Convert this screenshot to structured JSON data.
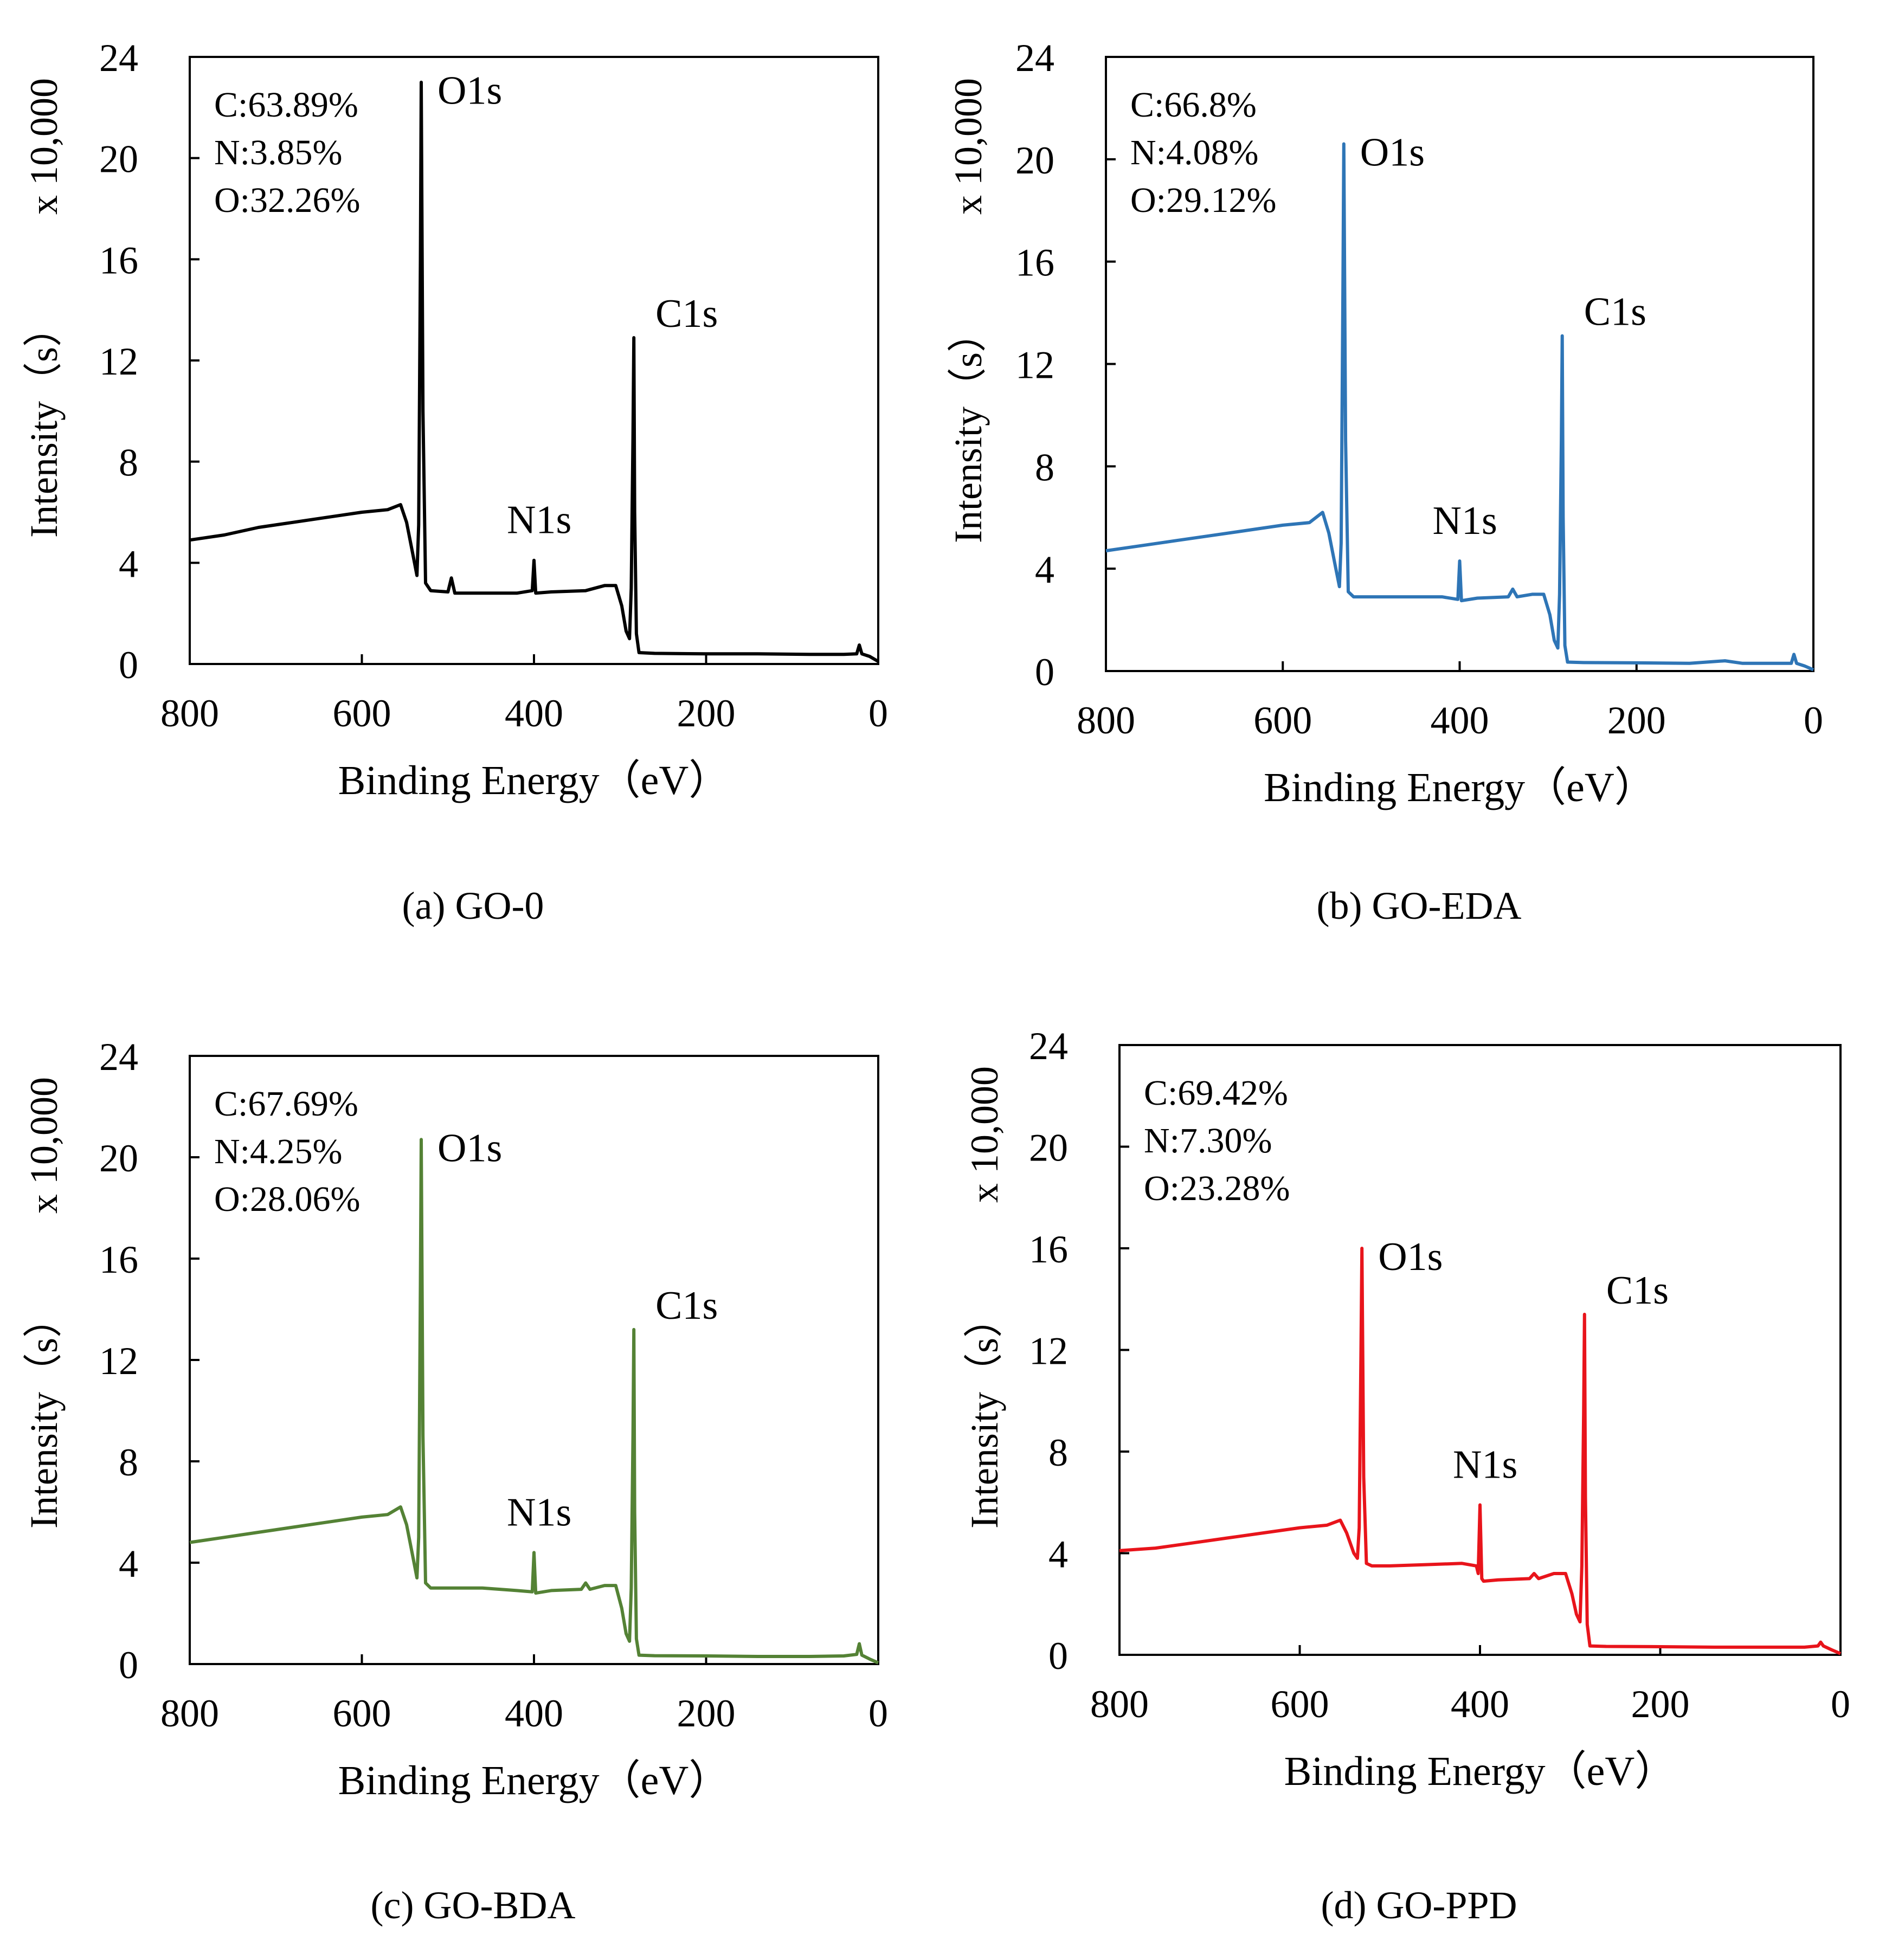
{
  "chart_data": [
    {
      "type": "line",
      "caption": "(a) GO-0",
      "color": "#000000",
      "xlabel": "Binding Energy（eV）",
      "ylabel": "Intensity（s）",
      "yscale_label": "x 10,000",
      "xlim": [
        800,
        0
      ],
      "ylim": [
        0,
        24
      ],
      "xticks": [
        "800",
        "600",
        "400",
        "200",
        "0"
      ],
      "yticks": [
        "0",
        "4",
        "8",
        "12",
        "16",
        "20",
        "24"
      ],
      "composition": [
        "C:63.89%",
        "N:3.85%",
        "O:32.26%"
      ],
      "peaks": [
        {
          "label": "O1s",
          "x": 531,
          "y": 23.0
        },
        {
          "label": "N1s",
          "x": 400,
          "y": 4.1
        },
        {
          "label": "C1s",
          "x": 284,
          "y": 12.9
        }
      ],
      "series": [
        {
          "name": "GO-0",
          "x": [
            800,
            760,
            720,
            680,
            640,
            600,
            570,
            555,
            548,
            540,
            536,
            534,
            532,
            531,
            529,
            526,
            520,
            500,
            496,
            492,
            460,
            420,
            402,
            400,
            398,
            380,
            340,
            318,
            305,
            298,
            293,
            289,
            287,
            285,
            284,
            283,
            281,
            278,
            260,
            200,
            140,
            80,
            40,
            25,
            22,
            19,
            10,
            0
          ],
          "y": [
            4.9,
            5.1,
            5.4,
            5.6,
            5.8,
            6.0,
            6.1,
            6.3,
            5.6,
            4.2,
            3.5,
            5.5,
            16.0,
            23.0,
            10.0,
            3.2,
            2.9,
            2.85,
            3.4,
            2.8,
            2.8,
            2.8,
            2.9,
            4.1,
            2.8,
            2.85,
            2.9,
            3.1,
            3.1,
            2.3,
            1.3,
            1.0,
            3.0,
            9.0,
            12.9,
            6.0,
            1.2,
            0.45,
            0.42,
            0.4,
            0.4,
            0.38,
            0.38,
            0.4,
            0.75,
            0.4,
            0.3,
            0.1
          ]
        }
      ]
    },
    {
      "type": "line",
      "caption": "(b) GO-EDA",
      "color": "#2e75b6",
      "xlabel": "Binding Energy（eV）",
      "ylabel": "Intensity（s）",
      "yscale_label": "x 10,000",
      "xlim": [
        800,
        0
      ],
      "ylim": [
        0,
        24
      ],
      "xticks": [
        "800",
        "600",
        "400",
        "200",
        "0"
      ],
      "yticks": [
        "0",
        "4",
        "8",
        "12",
        "16",
        "20",
        "24"
      ],
      "composition": [
        "C:66.8%",
        "N:4.08%",
        "O:29.12%"
      ],
      "peaks": [
        {
          "label": "O1s",
          "x": 531,
          "y": 20.6
        },
        {
          "label": "N1s",
          "x": 400,
          "y": 4.3
        },
        {
          "label": "C1s",
          "x": 284,
          "y": 13.1
        }
      ],
      "series": [
        {
          "name": "GO-EDA",
          "x": [
            800,
            760,
            720,
            680,
            640,
            600,
            570,
            555,
            548,
            540,
            536,
            534,
            532,
            531,
            529,
            526,
            520,
            500,
            460,
            420,
            402,
            400,
            398,
            380,
            345,
            340,
            335,
            318,
            305,
            298,
            293,
            289,
            287,
            285,
            284,
            283,
            281,
            278,
            260,
            200,
            140,
            100,
            80,
            40,
            25,
            22,
            19,
            10,
            0
          ],
          "y": [
            4.7,
            4.9,
            5.1,
            5.3,
            5.5,
            5.7,
            5.8,
            6.2,
            5.4,
            4.0,
            3.3,
            5.0,
            15.0,
            20.6,
            9.0,
            3.1,
            2.9,
            2.9,
            2.9,
            2.9,
            2.8,
            4.3,
            2.75,
            2.85,
            2.9,
            3.2,
            2.9,
            3.0,
            3.0,
            2.2,
            1.2,
            0.9,
            3.0,
            9.0,
            13.1,
            6.0,
            1.0,
            0.35,
            0.33,
            0.32,
            0.3,
            0.4,
            0.3,
            0.3,
            0.3,
            0.65,
            0.3,
            0.2,
            0.05
          ]
        }
      ]
    },
    {
      "type": "line",
      "caption": "(c) GO-BDA",
      "color": "#548235",
      "xlabel": "Binding Energy（eV）",
      "ylabel": "Intensity（s）",
      "yscale_label": "x 10,000",
      "xlim": [
        800,
        0
      ],
      "ylim": [
        0,
        24
      ],
      "xticks": [
        "800",
        "600",
        "400",
        "200",
        "0"
      ],
      "yticks": [
        "0",
        "4",
        "8",
        "12",
        "16",
        "20",
        "24"
      ],
      "composition": [
        "C:67.69%",
        "N:4.25%",
        "O:28.06%"
      ],
      "peaks": [
        {
          "label": "O1s",
          "x": 531,
          "y": 20.7
        },
        {
          "label": "N1s",
          "x": 400,
          "y": 4.4
        },
        {
          "label": "C1s",
          "x": 284,
          "y": 13.2
        }
      ],
      "series": [
        {
          "name": "GO-BDA",
          "x": [
            800,
            760,
            720,
            680,
            640,
            600,
            570,
            555,
            548,
            540,
            536,
            534,
            532,
            531,
            529,
            526,
            520,
            500,
            460,
            420,
            402,
            400,
            398,
            380,
            345,
            340,
            335,
            318,
            305,
            298,
            293,
            289,
            287,
            285,
            284,
            283,
            281,
            278,
            260,
            200,
            140,
            80,
            40,
            25,
            22,
            19,
            10,
            0
          ],
          "y": [
            4.8,
            5.0,
            5.2,
            5.4,
            5.6,
            5.8,
            5.9,
            6.2,
            5.5,
            4.1,
            3.4,
            5.0,
            15.0,
            20.7,
            9.0,
            3.2,
            3.0,
            3.0,
            3.0,
            2.9,
            2.85,
            4.4,
            2.8,
            2.9,
            2.95,
            3.2,
            2.95,
            3.1,
            3.1,
            2.2,
            1.2,
            0.9,
            3.0,
            9.0,
            13.2,
            6.0,
            1.0,
            0.35,
            0.33,
            0.32,
            0.3,
            0.3,
            0.32,
            0.38,
            0.8,
            0.35,
            0.2,
            0.05
          ]
        }
      ]
    },
    {
      "type": "line",
      "caption": "(d) GO-PPD",
      "color": "#e8141b",
      "xlabel": "Binding Energy（eV）",
      "ylabel": "Intensity（s）",
      "yscale_label": "x 10,000",
      "xlim": [
        800,
        0
      ],
      "ylim": [
        0,
        24
      ],
      "xticks": [
        "800",
        "600",
        "400",
        "200",
        "0"
      ],
      "yticks": [
        "0",
        "4",
        "8",
        "12",
        "16",
        "20",
        "24"
      ],
      "composition": [
        "C:69.42%",
        "N:7.30%",
        "O:23.28%"
      ],
      "peaks": [
        {
          "label": "O1s",
          "x": 531,
          "y": 16.0
        },
        {
          "label": "N1s",
          "x": 400,
          "y": 5.9
        },
        {
          "label": "C1s",
          "x": 284,
          "y": 13.4
        }
      ],
      "series": [
        {
          "name": "GO-PPD",
          "x": [
            800,
            760,
            720,
            680,
            640,
            600,
            570,
            555,
            548,
            540,
            536,
            534,
            532,
            531,
            529,
            526,
            520,
            500,
            460,
            420,
            404,
            402,
            400,
            398,
            396,
            380,
            345,
            340,
            335,
            318,
            305,
            298,
            293,
            289,
            287,
            285,
            284,
            283,
            281,
            278,
            260,
            200,
            140,
            80,
            40,
            25,
            22,
            19,
            10,
            0
          ],
          "y": [
            4.1,
            4.2,
            4.4,
            4.6,
            4.8,
            5.0,
            5.1,
            5.3,
            4.8,
            4.0,
            3.8,
            5.0,
            12.0,
            16.0,
            7.0,
            3.6,
            3.5,
            3.5,
            3.55,
            3.6,
            3.5,
            3.2,
            5.9,
            3.0,
            2.9,
            2.95,
            3.0,
            3.2,
            3.0,
            3.2,
            3.2,
            2.4,
            1.6,
            1.3,
            3.5,
            9.5,
            13.4,
            6.2,
            1.2,
            0.35,
            0.33,
            0.32,
            0.3,
            0.3,
            0.3,
            0.35,
            0.5,
            0.35,
            0.2,
            0.05
          ]
        }
      ]
    }
  ]
}
